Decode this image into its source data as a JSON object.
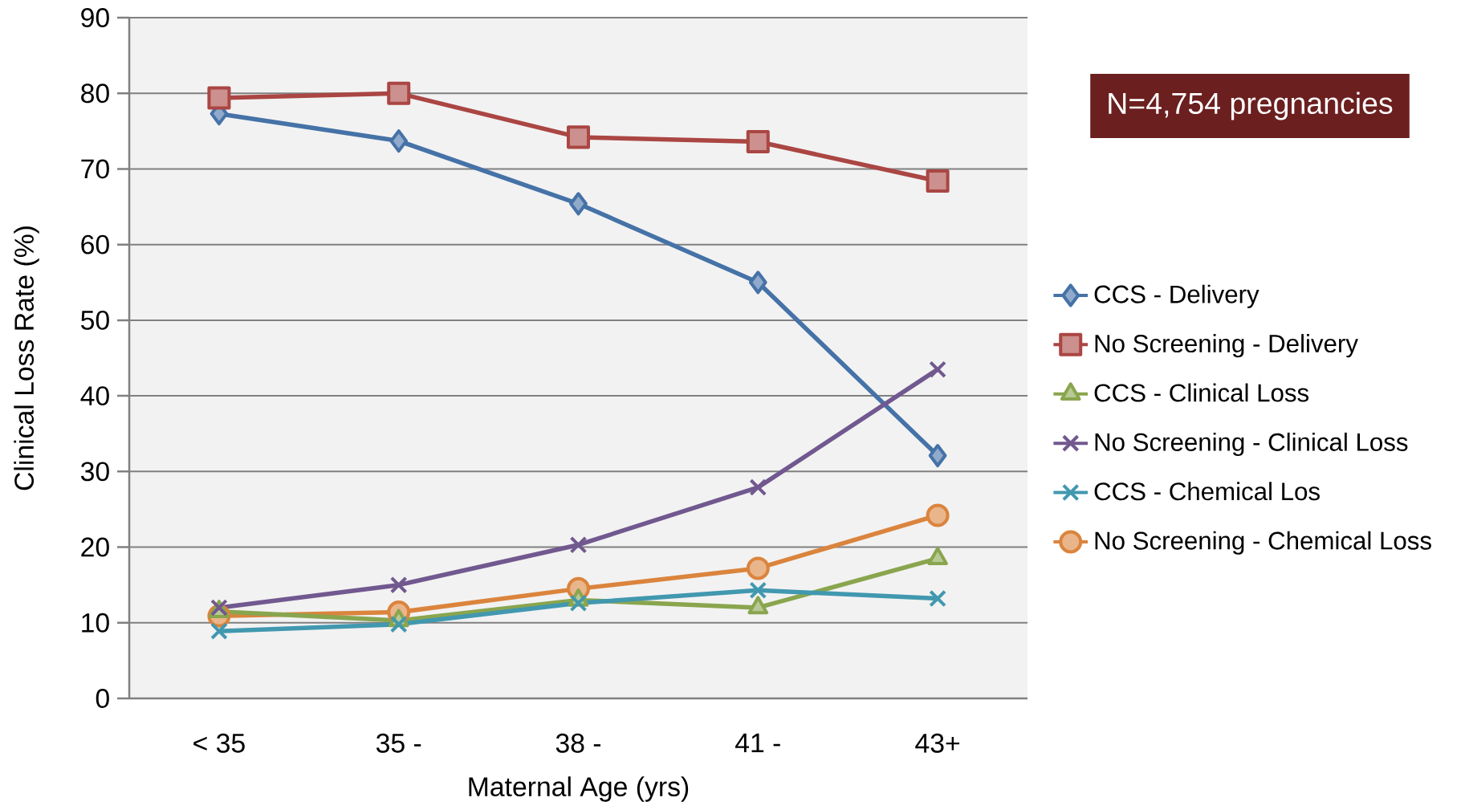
{
  "chart_data": {
    "type": "line",
    "xlabel": "Maternal Age (yrs)",
    "ylabel": "Clinical Loss Rate (%)",
    "categories": [
      "< 35",
      "35 -",
      "38 -",
      "41 -",
      "43+"
    ],
    "ylim": [
      0,
      90
    ],
    "yticks": [
      0,
      10,
      20,
      30,
      40,
      50,
      60,
      70,
      80,
      90
    ],
    "grid": "y",
    "legend": "right",
    "annotations": [
      "N=4,754 pregnancies"
    ],
    "series": [
      {
        "name": "CCS - Delivery",
        "color": "#4572a7",
        "marker": "diamond",
        "values": [
          77.3,
          73.7,
          65.4,
          55.0,
          32.1
        ]
      },
      {
        "name": "No Screening - Delivery",
        "color": "#aa4643",
        "marker": "square",
        "values": [
          79.4,
          80.0,
          74.2,
          73.6,
          68.4
        ]
      },
      {
        "name": "CCS - Clinical Loss",
        "color": "#89a54e",
        "marker": "triangle",
        "values": [
          11.5,
          10.3,
          13.0,
          12.0,
          18.5
        ]
      },
      {
        "name": "No Screening - Clinical Loss",
        "color": "#71588f",
        "marker": "cross",
        "values": [
          12.0,
          15.0,
          20.3,
          27.9,
          43.5
        ]
      },
      {
        "name": "CCS - Chemical Los",
        "color": "#4198af",
        "marker": "cross",
        "values": [
          8.9,
          9.8,
          12.6,
          14.3,
          13.2
        ]
      },
      {
        "name": "No Screening - Chemical Loss",
        "color": "#db843d",
        "marker": "circle",
        "values": [
          10.9,
          11.4,
          14.5,
          17.2,
          24.2
        ]
      }
    ]
  }
}
